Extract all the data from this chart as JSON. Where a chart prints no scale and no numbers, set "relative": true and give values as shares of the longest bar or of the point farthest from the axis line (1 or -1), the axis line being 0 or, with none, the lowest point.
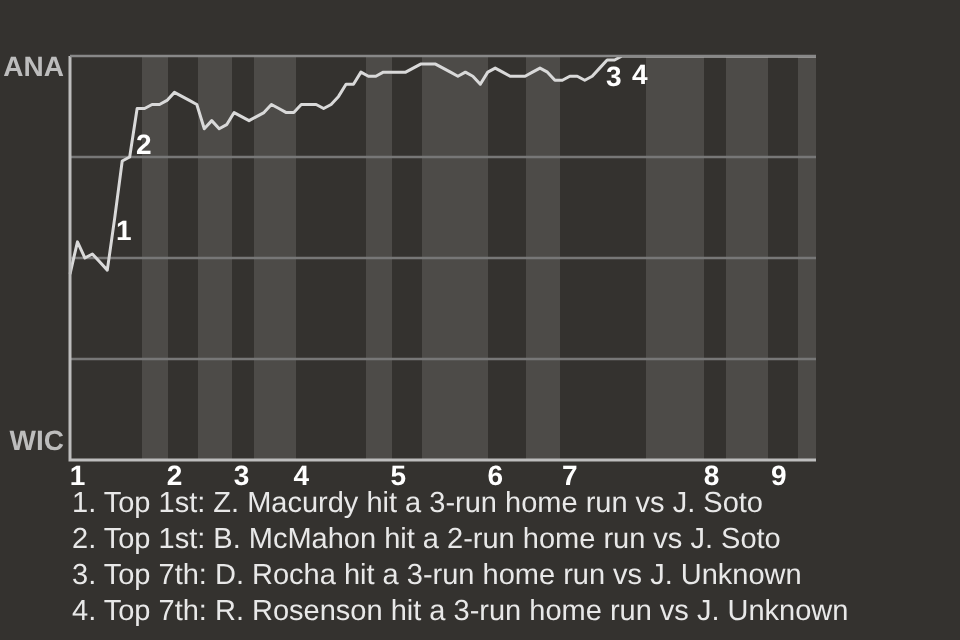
{
  "chart_data": {
    "type": "line",
    "relative": true,
    "categories": [
      null,
      "1",
      null,
      null,
      null,
      null,
      null,
      null,
      null,
      null,
      null,
      null,
      null,
      null,
      "2",
      null,
      null,
      null,
      null,
      null,
      null,
      null,
      null,
      "3",
      null,
      null,
      null,
      null,
      null,
      null,
      null,
      "4",
      null,
      null,
      null,
      null,
      null,
      null,
      null,
      null,
      null,
      null,
      null,
      null,
      "5",
      null,
      null,
      null,
      null,
      null,
      null,
      null,
      null,
      null,
      null,
      null,
      null,
      "6",
      null,
      null,
      null,
      null,
      null,
      null,
      null,
      null,
      null,
      "7",
      null,
      null,
      null,
      null,
      null,
      null,
      null,
      null,
      null,
      null,
      null,
      null,
      null,
      null,
      null,
      null,
      null,
      null,
      "8",
      null,
      null,
      null,
      null,
      null,
      null,
      null,
      null,
      "9",
      null,
      null,
      null,
      null,
      null
    ],
    "series": [
      {
        "color": "#d9d9d9",
        "values": [
          0.46,
          0.54,
          0.5,
          0.51,
          0.49,
          0.47,
          0.6,
          0.74,
          0.75,
          0.87,
          0.87,
          0.88,
          0.88,
          0.89,
          0.91,
          0.9,
          0.89,
          0.88,
          0.82,
          0.84,
          0.82,
          0.83,
          0.86,
          0.85,
          0.84,
          0.85,
          0.86,
          0.88,
          0.87,
          0.86,
          0.86,
          0.88,
          0.88,
          0.88,
          0.87,
          0.88,
          0.9,
          0.93,
          0.93,
          0.96,
          0.95,
          0.95,
          0.96,
          0.96,
          0.96,
          0.96,
          0.97,
          0.98,
          0.98,
          0.98,
          0.97,
          0.96,
          0.95,
          0.96,
          0.95,
          0.93,
          0.96,
          0.97,
          0.96,
          0.95,
          0.95,
          0.95,
          0.96,
          0.97,
          0.96,
          0.94,
          0.94,
          0.95,
          0.95,
          0.94,
          0.95,
          0.97,
          0.99,
          0.99,
          1,
          1,
          1,
          1,
          1,
          1,
          1,
          1,
          1,
          1,
          1,
          1,
          1,
          1,
          1,
          1,
          1,
          1,
          1,
          1,
          1,
          1,
          1,
          1,
          1,
          1,
          1
        ]
      }
    ],
    "marker": "none",
    "ref_lines": [
      {
        "axis": "y",
        "value": 0.25,
        "color": "#777777"
      },
      {
        "axis": "y",
        "value": 0.5,
        "color": "#777777"
      },
      {
        "axis": "y",
        "value": 0.75,
        "color": "#777777"
      }
    ],
    "annotations": [
      "ANA",
      "WIC",
      "1",
      "2",
      "3",
      "4",
      "1. Top 1st: Z. Macurdy hit a 3-run home run vs J. Soto",
      "2. Top 1st: B. McMahon hit a 2-run home run vs J. Soto",
      "3. Top 7th: D. Rocha hit a 3-run home run vs J. Unknown",
      "4. Top 7th: R. Rosenson hit a 3-run home run vs J. Unknown"
    ]
  }
}
